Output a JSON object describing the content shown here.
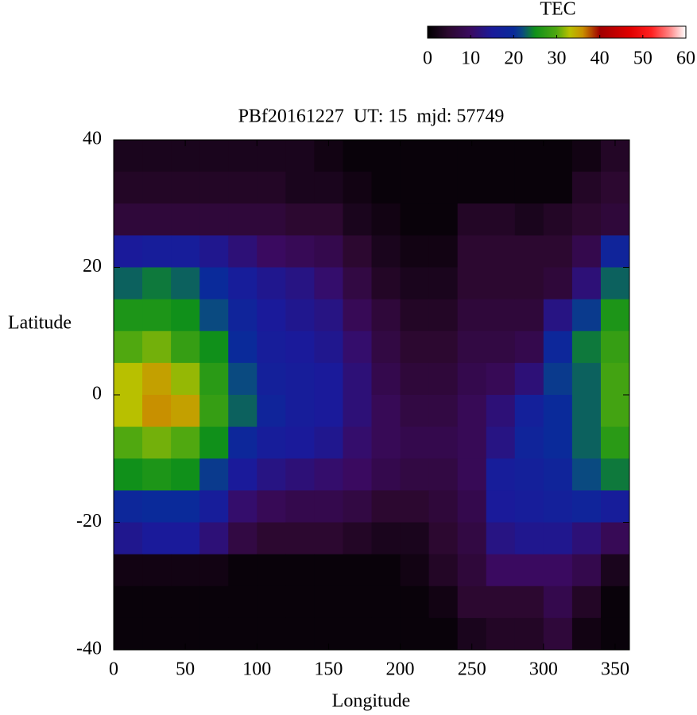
{
  "chart_data": {
    "type": "heatmap",
    "title": "PBf20161227  UT: 15  mjd: 57749",
    "x_label": "Longitude",
    "y_label": "Latitude",
    "xlim": [
      0,
      360
    ],
    "xticks": [
      0,
      50,
      100,
      150,
      200,
      250,
      300,
      350
    ],
    "ylim": [
      -40,
      40
    ],
    "yticks": [
      -40,
      -20,
      0,
      20,
      40
    ],
    "x_edges": [
      0,
      20,
      40,
      60,
      80,
      100,
      120,
      140,
      160,
      180,
      200,
      220,
      240,
      260,
      280,
      300,
      320,
      340,
      360
    ],
    "y_edges": [
      40,
      35,
      30,
      25,
      20,
      15,
      10,
      5,
      0,
      -5,
      -10,
      -15,
      -20,
      -25,
      -30,
      -35,
      -40
    ],
    "z": [
      [
        3,
        3,
        3,
        3,
        3,
        3,
        3,
        2,
        1,
        1,
        1,
        1,
        1,
        1,
        1,
        1,
        2,
        4
      ],
      [
        4,
        4,
        4,
        4,
        4,
        4,
        3,
        3,
        2,
        1,
        1,
        1,
        1,
        1,
        1,
        1,
        4,
        5
      ],
      [
        6,
        6,
        6,
        6,
        6,
        6,
        5,
        5,
        3,
        2,
        1,
        1,
        4,
        4,
        3,
        4,
        5,
        6
      ],
      [
        15,
        16,
        16,
        14,
        12,
        10,
        9,
        8,
        5,
        3,
        2,
        2,
        5,
        5,
        5,
        5,
        8,
        18
      ],
      [
        23,
        24,
        23,
        20,
        16,
        14,
        13,
        11,
        7,
        4,
        3,
        3,
        5,
        5,
        5,
        6,
        12,
        23
      ],
      [
        26,
        26,
        25,
        22,
        18,
        15,
        14,
        13,
        9,
        6,
        4,
        4,
        6,
        6,
        6,
        13,
        21,
        26
      ],
      [
        30,
        31,
        28,
        25,
        20,
        16,
        15,
        14,
        11,
        7,
        5,
        5,
        7,
        7,
        8,
        19,
        24,
        28
      ],
      [
        33,
        35,
        32,
        27,
        22,
        17,
        16,
        15,
        12,
        8,
        6,
        6,
        8,
        9,
        12,
        21,
        23,
        29
      ],
      [
        33,
        36,
        35,
        28,
        23,
        18,
        16,
        15,
        12,
        9,
        7,
        7,
        9,
        12,
        17,
        20,
        23,
        29
      ],
      [
        30,
        31,
        30,
        25,
        19,
        16,
        15,
        14,
        11,
        9,
        8,
        8,
        9,
        13,
        18,
        20,
        23,
        27
      ],
      [
        25,
        26,
        25,
        21,
        15,
        13,
        12,
        11,
        10,
        8,
        7,
        7,
        9,
        16,
        17,
        18,
        22,
        24
      ],
      [
        19,
        20,
        20,
        16,
        11,
        9,
        8,
        8,
        7,
        5,
        5,
        6,
        8,
        15,
        16,
        17,
        18,
        16
      ],
      [
        14,
        15,
        15,
        12,
        7,
        5,
        5,
        5,
        4,
        3,
        3,
        5,
        7,
        13,
        14,
        14,
        12,
        9
      ],
      [
        2,
        2,
        2,
        2,
        1,
        1,
        1,
        1,
        1,
        1,
        2,
        4,
        6,
        10,
        10,
        10,
        8,
        3
      ],
      [
        1,
        1,
        1,
        1,
        1,
        1,
        1,
        1,
        1,
        1,
        1,
        2,
        5,
        5,
        5,
        8,
        4,
        1
      ],
      [
        1,
        1,
        1,
        1,
        1,
        1,
        1,
        1,
        1,
        1,
        1,
        1,
        3,
        4,
        4,
        6,
        2,
        1
      ]
    ],
    "colorbar": {
      "label": "TEC",
      "lim": [
        0,
        60
      ],
      "ticks": [
        0,
        10,
        20,
        30,
        40,
        50,
        60
      ]
    },
    "colorscale": [
      [
        0,
        "#000000"
      ],
      [
        5,
        "#2c0830"
      ],
      [
        10,
        "#3a0a60"
      ],
      [
        15,
        "#1a1a9a"
      ],
      [
        20,
        "#0a2a9a"
      ],
      [
        22,
        "#0a4a80"
      ],
      [
        25,
        "#10901a"
      ],
      [
        30,
        "#50a810"
      ],
      [
        33,
        "#b8c000"
      ],
      [
        36,
        "#c89000"
      ],
      [
        40,
        "#a00000"
      ],
      [
        47,
        "#e00000"
      ],
      [
        52,
        "#ff2020"
      ],
      [
        56,
        "#ff8080"
      ],
      [
        60,
        "#ffffff"
      ]
    ]
  }
}
